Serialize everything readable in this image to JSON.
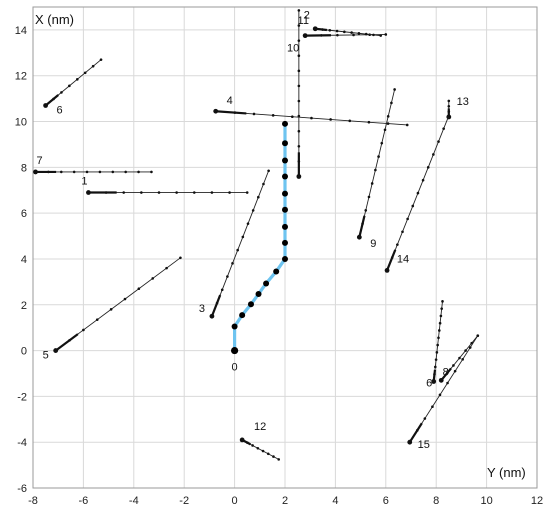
{
  "chart_data": {
    "type": "scatter",
    "xlabel": "Y (nm)",
    "ylabel": "X (nm)",
    "xlim": [
      -8,
      12
    ],
    "ylim": [
      -6,
      15
    ],
    "xticks": [
      -8,
      -6,
      -4,
      -2,
      0,
      2,
      4,
      6,
      8,
      10,
      12
    ],
    "yticks": [
      -6,
      -4,
      -2,
      0,
      2,
      4,
      6,
      8,
      10,
      12,
      14
    ],
    "grid": true,
    "highlight": {
      "name": "0",
      "color": "#6ec4f0",
      "points": [
        [
          0,
          0
        ],
        [
          0,
          1.05
        ],
        [
          0.3,
          1.55
        ],
        [
          0.65,
          2.02
        ],
        [
          0.95,
          2.47
        ],
        [
          1.25,
          2.93
        ],
        [
          1.65,
          3.45
        ],
        [
          2,
          4
        ],
        [
          2,
          4.7
        ],
        [
          2,
          5.4
        ],
        [
          2,
          6.15
        ],
        [
          2,
          6.85
        ],
        [
          2,
          7.6
        ],
        [
          2,
          8.3
        ],
        [
          2,
          9.05
        ],
        [
          2,
          9.9
        ]
      ]
    },
    "tracks": [
      {
        "name": "1",
        "start": [
          -5.8,
          6.9
        ],
        "end": [
          0.5,
          6.9
        ],
        "n": 10
      },
      {
        "name": "2",
        "start": [
          2.55,
          7.6
        ],
        "end": [
          2.55,
          14.85
        ],
        "n": 12
      },
      {
        "name": "3",
        "start": [
          -0.9,
          1.5
        ],
        "end": [
          1.35,
          7.85
        ],
        "n": 12
      },
      {
        "name": "4",
        "start": [
          -0.75,
          10.45
        ],
        "end": [
          6.85,
          9.85
        ],
        "n": 11
      },
      {
        "name": "5",
        "start": [
          -7.1,
          0
        ],
        "end": [
          -2.15,
          4.05
        ],
        "n": 10
      },
      {
        "name": "6",
        "start": [
          -7.5,
          10.7
        ],
        "end": [
          -5.3,
          12.7
        ],
        "n": 8
      },
      {
        "name": "6",
        "start": [
          8.2,
          -1.3
        ],
        "end": [
          9.65,
          0.65
        ],
        "n": 7
      },
      {
        "name": "7",
        "start": [
          -7.9,
          7.8
        ],
        "end": [
          -3.3,
          7.8
        ],
        "n": 10
      },
      {
        "name": "8",
        "start": [
          7.9,
          -1.35
        ],
        "end": [
          8.25,
          2.15
        ],
        "n": 12
      },
      {
        "name": "9",
        "start": [
          4.95,
          4.95
        ],
        "end": [
          6.35,
          11.4
        ],
        "n": 12
      },
      {
        "name": "10",
        "start": [
          2.8,
          13.75
        ],
        "end": [
          6,
          13.8
        ],
        "n": 6
      },
      {
        "name": "11",
        "start": [
          3.2,
          14.05
        ],
        "end": [
          5.8,
          13.75
        ],
        "n": 10
      },
      {
        "name": "12",
        "start": [
          0.3,
          -3.9
        ],
        "end": [
          1.75,
          -4.75
        ],
        "n": 8
      },
      {
        "name": "13",
        "start": [
          8.5,
          10.2
        ],
        "end": [
          8.5,
          10.9
        ],
        "n": 4
      },
      {
        "name": "14",
        "start": [
          6.05,
          3.5
        ],
        "end": [
          8.5,
          10.25
        ],
        "n": 13
      },
      {
        "name": "15",
        "start": [
          6.95,
          -4
        ],
        "end": [
          9.65,
          0.65
        ],
        "n": 10
      }
    ]
  }
}
